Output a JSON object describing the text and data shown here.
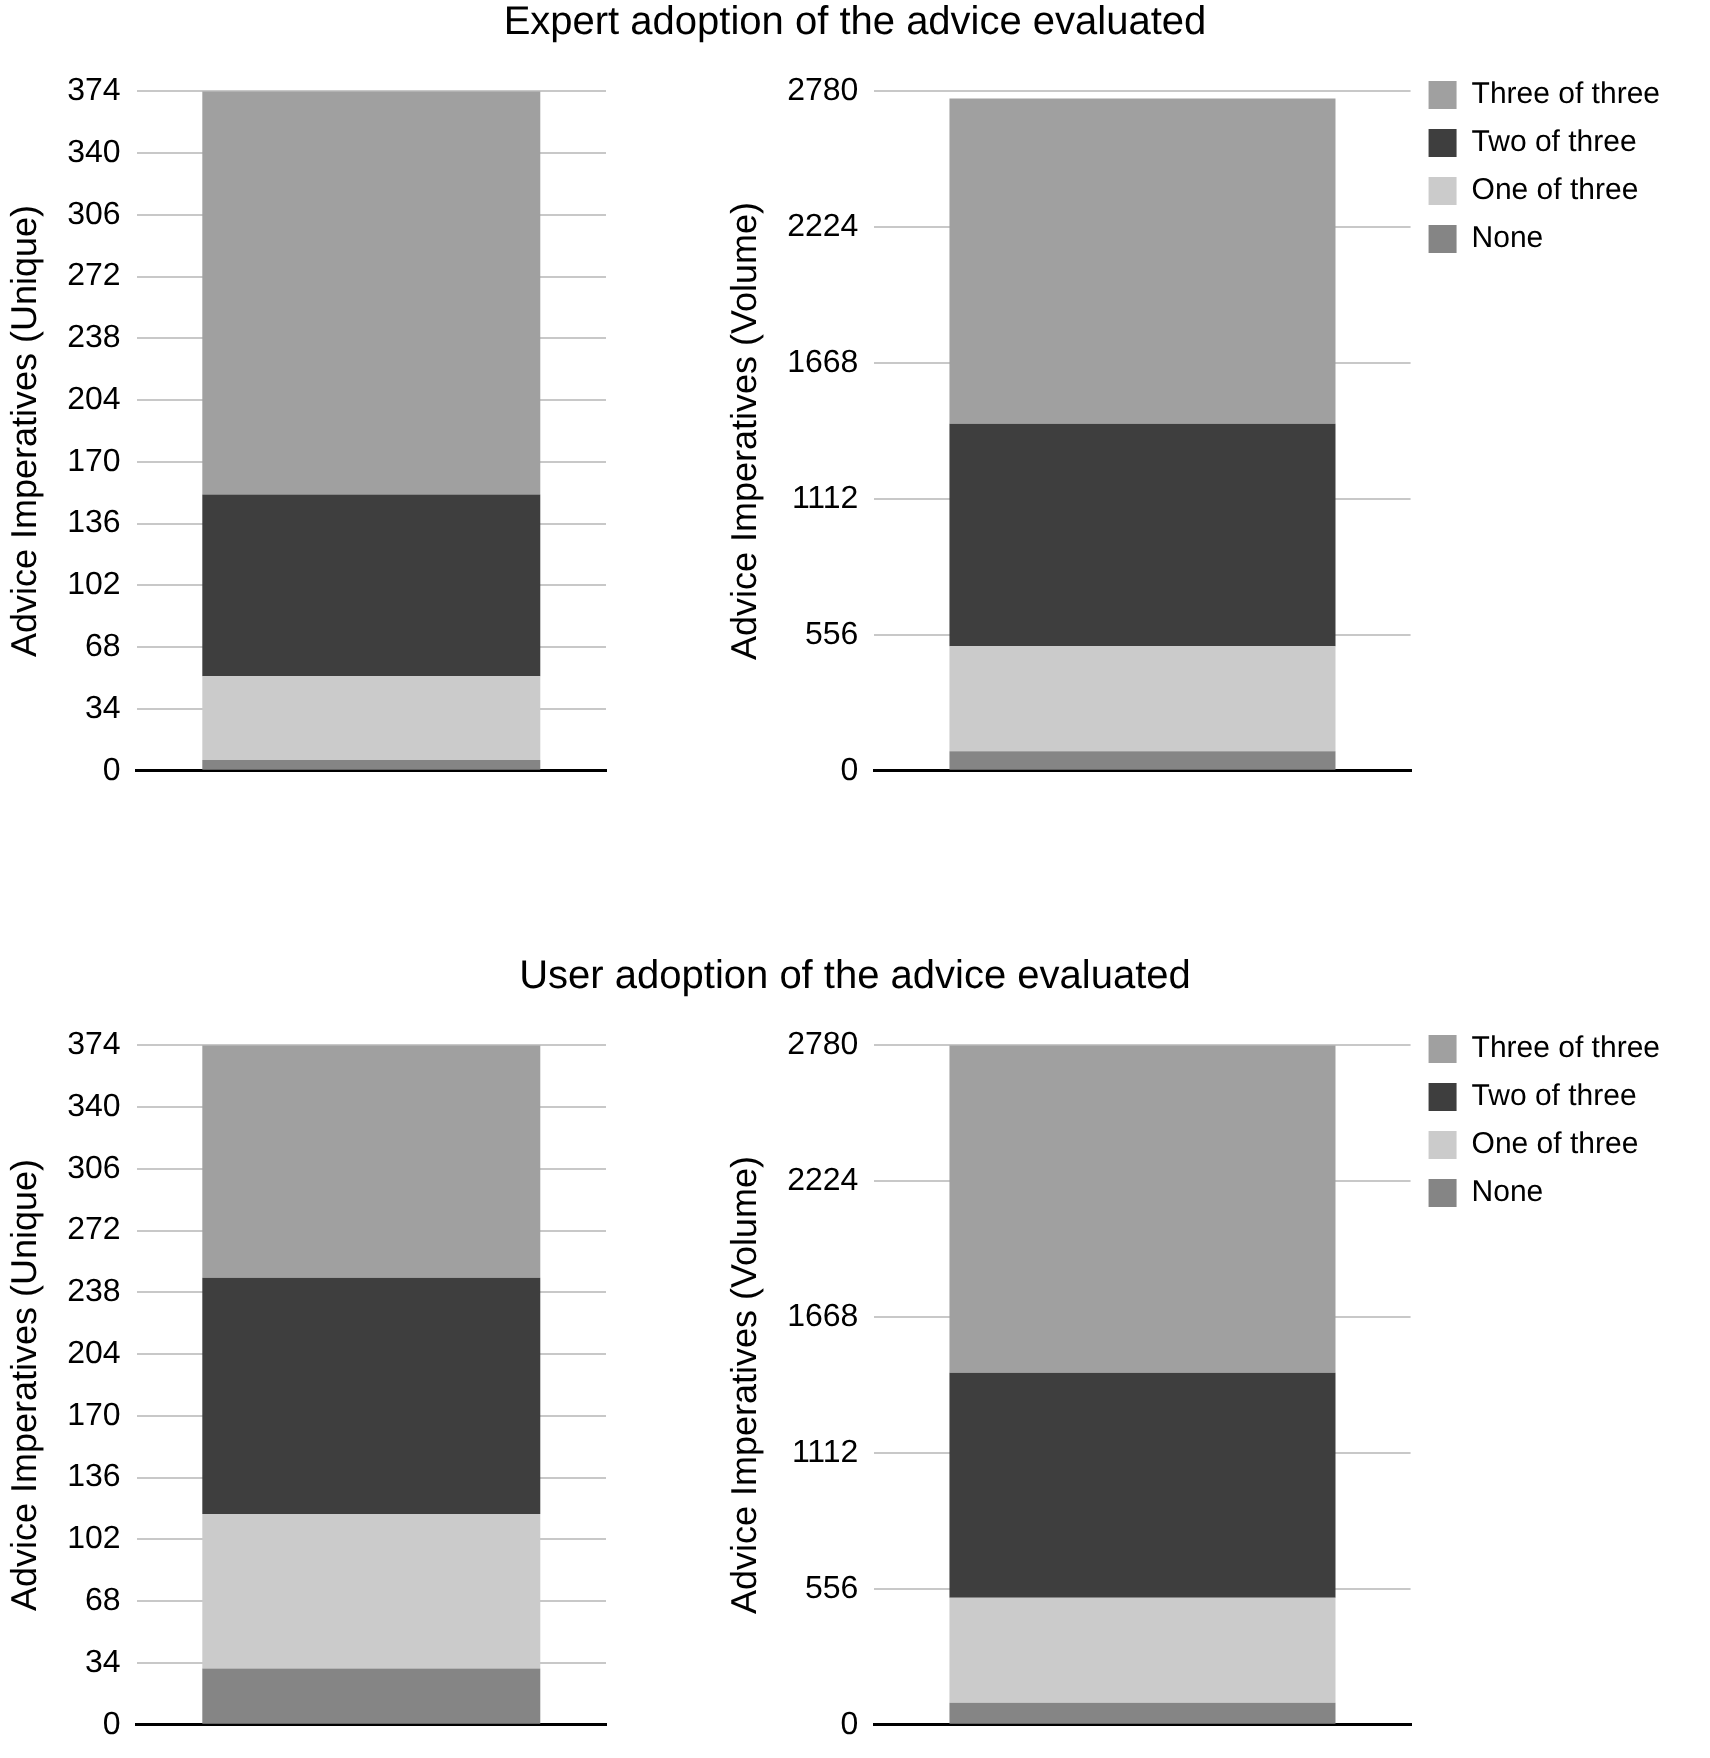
{
  "chart_data": [
    {
      "type": "bar",
      "title": "Expert adoption of the advice evaluated",
      "ylabel": "Advice Imperatives (Unique)",
      "categories": [
        null
      ],
      "stacked": true,
      "grid": "y",
      "legend": false,
      "ylim": [
        0,
        374
      ],
      "yticks": [
        0,
        34,
        68,
        102,
        136,
        170,
        204,
        238,
        272,
        306,
        340,
        374
      ],
      "series": [
        {
          "color": "#858585",
          "values": [
            6
          ]
        },
        {
          "color": "#cbcbcb",
          "values": [
            46
          ]
        },
        {
          "color": "#3e3e3e",
          "values": [
            100
          ]
        },
        {
          "color": "#a0a0a0",
          "values": [
            222
          ]
        }
      ]
    },
    {
      "type": "bar",
      "ylabel": "Advice Imperatives (Volume)",
      "categories": [
        null
      ],
      "stacked": true,
      "grid": "y",
      "legend": "right",
      "ylim": [
        0,
        2780
      ],
      "yticks": [
        0,
        556,
        1112,
        1668,
        2224,
        2780
      ],
      "series": [
        {
          "name": "None",
          "color": "#858585",
          "values": [
            80
          ]
        },
        {
          "name": "One of three",
          "color": "#cbcbcb",
          "values": [
            430
          ]
        },
        {
          "name": "Two of three",
          "color": "#3e3e3e",
          "values": [
            910
          ]
        },
        {
          "name": "Three of three",
          "color": "#a0a0a0",
          "values": [
            1330
          ]
        }
      ]
    },
    {
      "type": "bar",
      "title": "User adoption of the advice evaluated",
      "ylabel": "Advice Imperatives (Unique)",
      "categories": [
        null
      ],
      "stacked": true,
      "grid": "y",
      "legend": false,
      "ylim": [
        0,
        374
      ],
      "yticks": [
        0,
        34,
        68,
        102,
        136,
        170,
        204,
        238,
        272,
        306,
        340,
        374
      ],
      "series": [
        {
          "color": "#858585",
          "values": [
            31
          ]
        },
        {
          "color": "#cbcbcb",
          "values": [
            85
          ]
        },
        {
          "color": "#3e3e3e",
          "values": [
            130
          ]
        },
        {
          "color": "#a0a0a0",
          "values": [
            128
          ]
        }
      ]
    },
    {
      "type": "bar",
      "ylabel": "Advice Imperatives (Volume)",
      "categories": [
        null
      ],
      "stacked": true,
      "grid": "y",
      "legend": "right",
      "ylim": [
        0,
        2780
      ],
      "yticks": [
        0,
        556,
        1112,
        1668,
        2224,
        2780
      ],
      "series": [
        {
          "name": "None",
          "color": "#858585",
          "values": [
            90
          ]
        },
        {
          "name": "One of three",
          "color": "#cbcbcb",
          "values": [
            430
          ]
        },
        {
          "name": "Two of three",
          "color": "#3e3e3e",
          "values": [
            920
          ]
        },
        {
          "name": "Three of three",
          "color": "#a0a0a0",
          "values": [
            1340
          ]
        }
      ]
    }
  ]
}
